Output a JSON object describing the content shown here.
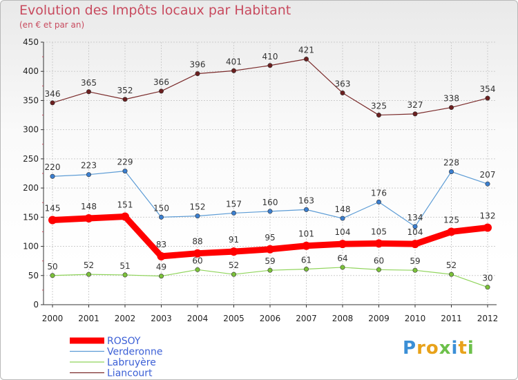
{
  "title": "Evolution des Impôts locaux par Habitant",
  "subtitle": "(en € et par an)",
  "brand": {
    "letters": [
      "P",
      "r",
      "o",
      "x",
      "i",
      "t",
      "i"
    ],
    "colors": [
      "#3b8fd6",
      "#e8a21a",
      "#e8a21a",
      "#6cc04a",
      "#3b8fd6",
      "#e8a21a",
      "#6cc04a"
    ]
  },
  "chart_data": {
    "type": "line",
    "title": "Evolution des Impôts locaux par Habitant",
    "subtitle": "(en € et par an)",
    "xlabel": "",
    "ylabel": "",
    "categories": [
      "2000",
      "2001",
      "2002",
      "2003",
      "2004",
      "2005",
      "2006",
      "2007",
      "2008",
      "2009",
      "2010",
      "2011",
      "2012"
    ],
    "ylim": [
      0,
      450
    ],
    "yticks": [
      0,
      50,
      100,
      150,
      200,
      250,
      300,
      350,
      400,
      450
    ],
    "grid": true,
    "legend_position": "bottom-left",
    "series": [
      {
        "name": "ROSOY",
        "color": "#ff0000",
        "values": [
          145,
          148,
          151,
          83,
          88,
          91,
          95,
          101,
          104,
          105,
          104,
          125,
          132
        ]
      },
      {
        "name": "Verderonne",
        "color": "#5b9bd5",
        "values": [
          220,
          223,
          229,
          150,
          152,
          157,
          160,
          163,
          148,
          176,
          134,
          228,
          207
        ]
      },
      {
        "name": "Labruyère",
        "color": "#8fd45a",
        "values": [
          50,
          52,
          51,
          49,
          60,
          52,
          59,
          61,
          64,
          60,
          59,
          52,
          30
        ]
      },
      {
        "name": "Liancourt",
        "color": "#7a2a2a",
        "values": [
          346,
          365,
          352,
          366,
          396,
          401,
          410,
          421,
          363,
          325,
          327,
          338,
          354
        ]
      }
    ]
  }
}
